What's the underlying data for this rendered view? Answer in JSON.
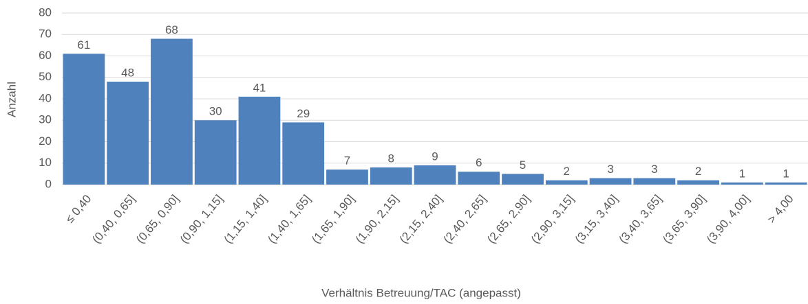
{
  "chart_data": {
    "type": "bar",
    "x_label": "Verhältnis Betreuung/TAC (angepasst)",
    "y_label": "Anzahl",
    "categories": [
      "≤ 0,40",
      "(0,40, 0,65]",
      "(0,65, 0,90]",
      "(0,90, 1,15]",
      "(1,15, 1,40]",
      "(1,40, 1,65]",
      "(1,65, 1,90]",
      "(1,90, 2,15]",
      "(2,15, 2,40]",
      "(2,40, 2,65]",
      "(2,65, 2,90]",
      "(2,90, 3,15]",
      "(3,15, 3,40]",
      "(3,40, 3,65]",
      "(3,65, 3,90]",
      "(3,90, 4,00]",
      "> 4,00"
    ],
    "values": [
      61,
      48,
      68,
      30,
      41,
      29,
      7,
      8,
      9,
      6,
      5,
      2,
      3,
      3,
      2,
      1,
      1
    ],
    "color": "#4f81bd",
    "ylim": [
      0,
      80
    ],
    "yticks": [
      0,
      10,
      20,
      30,
      40,
      50,
      60,
      70,
      80
    ],
    "grid": true
  }
}
